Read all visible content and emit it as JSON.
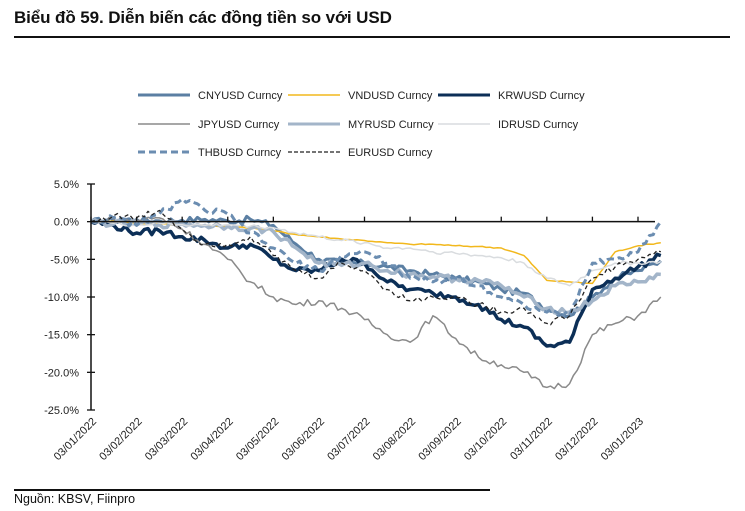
{
  "header": {
    "title": "Biểu đồ 59. Diễn biến các đồng tiền so với USD"
  },
  "footer": {
    "source": "Nguồn:  KBSV, Fiinpro"
  },
  "chart_data": {
    "type": "line",
    "title": "Biểu đồ 59. Diễn biến các đồng tiền so với USD",
    "xlabel": "",
    "ylabel": "",
    "ylim": [
      -25,
      5
    ],
    "y_ticks": [
      "5.0%",
      "0.0%",
      "-5.0%",
      "-10.0%",
      "-15.0%",
      "-20.0%",
      "-25.0%"
    ],
    "y_tick_values": [
      5,
      0,
      -5,
      -10,
      -15,
      -20,
      -25
    ],
    "x_tick_labels": [
      "03/01/2022",
      "03/02/2022",
      "03/03/2022",
      "03/04/2022",
      "03/05/2022",
      "03/06/2022",
      "03/07/2022",
      "03/08/2022",
      "03/09/2022",
      "03/10/2022",
      "03/11/2022",
      "03/12/2022",
      "03/01/2023"
    ],
    "x_range_months": [
      0,
      12.55
    ],
    "grid": false,
    "legend_position": "top",
    "x": [
      0,
      0.5,
      1,
      1.5,
      2,
      2.5,
      3,
      3.5,
      4,
      4.5,
      5,
      5.5,
      6,
      6.5,
      7,
      7.5,
      8,
      8.5,
      9,
      9.5,
      10,
      10.5,
      11,
      11.5,
      12,
      12.5
    ],
    "series": [
      {
        "name": "CNYUSD Curncy",
        "color": "#5b7fa3",
        "style": "solid",
        "width": 3,
        "values": [
          0,
          0.2,
          0.3,
          0.1,
          0.2,
          0.3,
          0.1,
          0.3,
          -0.5,
          -3,
          -5,
          -5.5,
          -5.5,
          -6,
          -6.5,
          -7,
          -7.5,
          -8,
          -9,
          -9.5,
          -11.5,
          -12.5,
          -10,
          -7.5,
          -6.5,
          -5.2
        ]
      },
      {
        "name": "VNDUSD Curncy",
        "color": "#f2b81d",
        "style": "solid",
        "width": 1.5,
        "values": [
          0,
          0.1,
          -0.2,
          -0.3,
          -0.4,
          -0.5,
          -0.7,
          -0.8,
          -1.2,
          -1.7,
          -2,
          -2.3,
          -2.5,
          -2.8,
          -3,
          -3,
          -3.2,
          -3.3,
          -3.5,
          -4.5,
          -7.8,
          -8,
          -8.2,
          -4,
          -3.2,
          -2.8
        ]
      },
      {
        "name": "KRWUSD Curncy",
        "color": "#0c2f57",
        "style": "solid",
        "width": 3.5,
        "values": [
          0,
          -0.5,
          -1.5,
          -1.2,
          -2,
          -2.5,
          -3.5,
          -3,
          -5,
          -6.5,
          -6.5,
          -5,
          -5.5,
          -8,
          -9,
          -9.5,
          -10,
          -11,
          -13,
          -14,
          -16.5,
          -16,
          -9,
          -7.5,
          -6,
          -4.5
        ]
      },
      {
        "name": "JPYUSD Curncy",
        "color": "#8a8a8a",
        "style": "solid",
        "width": 1.5,
        "values": [
          0,
          0.3,
          0.2,
          0.5,
          -1,
          -3,
          -5,
          -8,
          -10,
          -11,
          -10.5,
          -11.5,
          -13,
          -15,
          -16,
          -12.5,
          -15.5,
          -18,
          -19,
          -20,
          -22,
          -21.5,
          -15,
          -13.5,
          -12.5,
          -10
        ]
      },
      {
        "name": "MYRUSD Curncy",
        "color": "#a3b5c9",
        "style": "solid",
        "width": 3.5,
        "values": [
          0,
          -0.3,
          -0.2,
          -0.4,
          -0.3,
          -0.5,
          -0.6,
          -0.9,
          -1.3,
          -3.5,
          -5.5,
          -5.8,
          -5.5,
          -6.5,
          -7,
          -7.3,
          -7.6,
          -7.8,
          -8.5,
          -10,
          -11.5,
          -12,
          -10.5,
          -8.5,
          -8,
          -7
        ]
      },
      {
        "name": "IDRUSD Curncy",
        "color": "#d9dcdf",
        "style": "solid",
        "width": 1.5,
        "values": [
          0,
          -0.2,
          -0.5,
          -0.2,
          -0.4,
          -0.5,
          -0.4,
          -0.6,
          -0.8,
          -1.5,
          -2,
          -2.5,
          -2.8,
          -3.5,
          -3.5,
          -4,
          -4.2,
          -4.5,
          -4.8,
          -5.5,
          -7.5,
          -8.5,
          -6.5,
          -5.5,
          -5.5,
          -5.3
        ]
      },
      {
        "name": "THBUSD Curncy",
        "color": "#6b8db1",
        "style": "dashed",
        "width": 3,
        "values": [
          0,
          0.5,
          -0.5,
          1,
          3,
          1.5,
          1,
          -1.5,
          -3.5,
          -5.5,
          -6.5,
          -4.5,
          -4,
          -5.5,
          -7.5,
          -8,
          -7.5,
          -8.5,
          -10,
          -11,
          -12,
          -12.5,
          -5.5,
          -5,
          -4,
          0
        ]
      },
      {
        "name": "EURUSD Curncy",
        "color": "#222222",
        "style": "dashed",
        "width": 1.3,
        "values": [
          0,
          0.8,
          0.5,
          1.5,
          -1,
          -3,
          -3,
          -2,
          -4.5,
          -6.5,
          -7.5,
          -5.5,
          -6.5,
          -9,
          -10.5,
          -10,
          -10,
          -11,
          -12,
          -11.5,
          -13.5,
          -12.5,
          -7.5,
          -6,
          -5,
          -4
        ]
      }
    ]
  }
}
